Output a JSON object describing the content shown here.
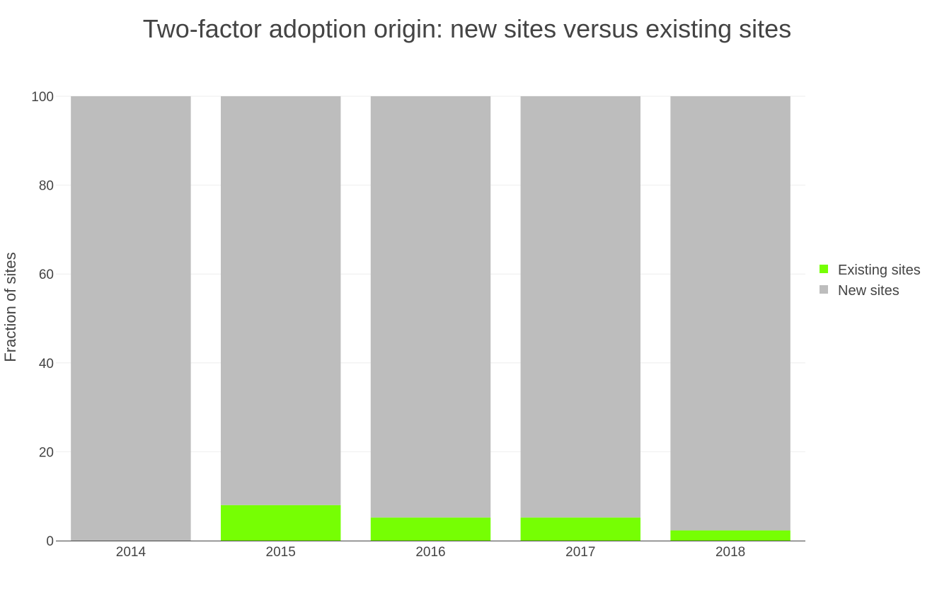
{
  "chart_data": {
    "type": "bar",
    "stacked": true,
    "title": "Two-factor adoption origin: new sites versus existing sites",
    "xlabel": "",
    "ylabel": "Fraction of sites",
    "categories": [
      "2014",
      "2015",
      "2016",
      "2017",
      "2018"
    ],
    "ylim": [
      0,
      100
    ],
    "yticks": [
      0,
      20,
      40,
      60,
      80,
      100
    ],
    "grid": true,
    "legend_position": "right",
    "series": [
      {
        "name": "Existing sites",
        "color": "#76ff03",
        "values": [
          0,
          8,
          5.2,
          5.2,
          2.3
        ]
      },
      {
        "name": "New sites",
        "color": "#bdbdbd",
        "values": [
          100,
          92,
          94.8,
          94.8,
          97.7
        ]
      }
    ]
  }
}
